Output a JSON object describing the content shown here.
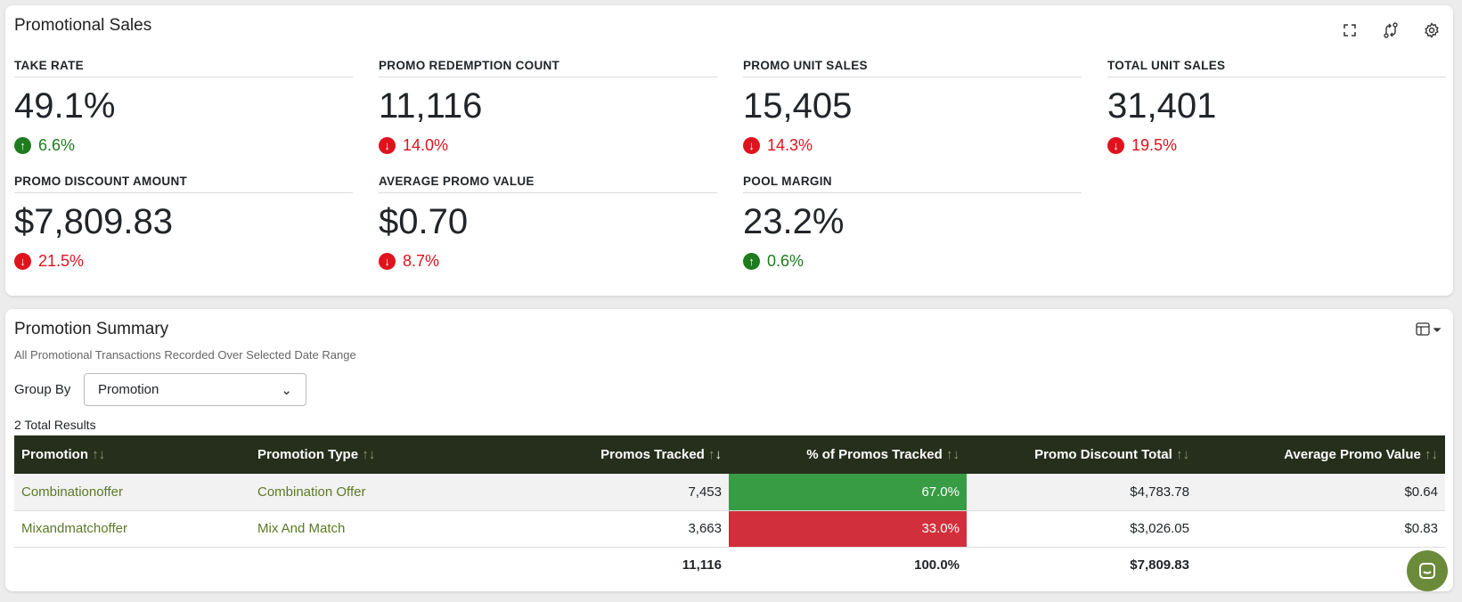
{
  "promotional_sales": {
    "title": "Promotional Sales",
    "icons": [
      "expand-icon",
      "compare-icon",
      "gear-icon"
    ],
    "kpis": [
      {
        "label": "TAKE RATE",
        "value": "49.1%",
        "change": "6.6%",
        "direction": "up"
      },
      {
        "label": "PROMO REDEMPTION COUNT",
        "value": "11,116",
        "change": "14.0%",
        "direction": "down"
      },
      {
        "label": "PROMO UNIT SALES",
        "value": "15,405",
        "change": "14.3%",
        "direction": "down"
      },
      {
        "label": "TOTAL UNIT SALES",
        "value": "31,401",
        "change": "19.5%",
        "direction": "down"
      },
      {
        "label": "PROMO DISCOUNT AMOUNT",
        "value": "$7,809.83",
        "change": "21.5%",
        "direction": "down"
      },
      {
        "label": "AVERAGE PROMO VALUE",
        "value": "$0.70",
        "change": "8.7%",
        "direction": "down"
      },
      {
        "label": "POOL MARGIN",
        "value": "23.2%",
        "change": "0.6%",
        "direction": "up"
      }
    ]
  },
  "promotion_summary": {
    "title": "Promotion Summary",
    "subtitle": "All Promotional Transactions Recorded Over Selected Date Range",
    "group_by_label": "Group By",
    "group_by_value": "Promotion",
    "total_results": "2 Total Results",
    "columns": [
      "Promotion",
      "Promotion Type",
      "Promos Tracked",
      "% of Promos Tracked",
      "Promo Discount Total",
      "Average Promo Value"
    ],
    "rows": [
      [
        "Combinationoffer",
        "Combination Offer",
        "7,453",
        "67.0%",
        "$4,783.78",
        "$0.64"
      ],
      [
        "Mixandmatchoffer",
        "Mix And Match",
        "3,663",
        "33.0%",
        "$3,026.05",
        "$0.83"
      ]
    ],
    "totals": [
      "",
      "",
      "11,116",
      "100.0%",
      "$7,809.83",
      ""
    ],
    "colors": {
      "header": "#252f1b",
      "pct_high": "#379c44",
      "pct_low": "#d12f3b",
      "link": "#5a7a25"
    }
  }
}
